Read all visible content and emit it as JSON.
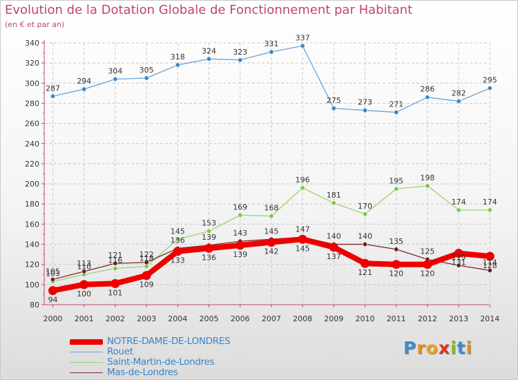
{
  "title": "Evolution de la Dotation Globale de Fonctionnement par Habitant",
  "subtitle": "(en € et par an)",
  "logo": {
    "text": "Proxiti",
    "letters": [
      "P",
      "r",
      "o",
      "x",
      "i",
      "t",
      "i"
    ],
    "colors": [
      "#3a8dd0",
      "#e58b1f",
      "#f0a020",
      "#e0361b",
      "#86b82c",
      "#3a8dd0",
      "#e58b1f"
    ]
  },
  "chart_data": {
    "type": "line",
    "title": "Evolution de la Dotation Globale de Fonctionnement par Habitant",
    "subtitle": "(en € et par an)",
    "x": [
      "2000",
      "2001",
      "2002",
      "2003",
      "2004",
      "2005",
      "2006",
      "2007",
      "2008",
      "2009",
      "2010",
      "2011",
      "2012",
      "2013",
      "2014"
    ],
    "ylim": [
      80,
      340
    ],
    "yticks": [
      80,
      100,
      120,
      140,
      160,
      180,
      200,
      220,
      240,
      260,
      280,
      300,
      320,
      340
    ],
    "grid": true,
    "legend_position": "bottom-left",
    "series": [
      {
        "name": "Rouet",
        "color": "#6aa3d6",
        "marker": "#3a87c8",
        "width": 1.3,
        "r": 3.2,
        "labels": "above",
        "values": [
          287,
          294,
          304,
          305,
          318,
          324,
          323,
          331,
          337,
          275,
          273,
          271,
          286,
          282,
          295
        ]
      },
      {
        "name": "Saint-Martin-de-Londres",
        "color": "#98d26c",
        "marker": "#7ec64a",
        "width": 1.3,
        "r": 3.2,
        "labels": "above",
        "values": [
          103,
          110,
          116,
          118,
          145,
          153,
          169,
          168,
          196,
          181,
          170,
          195,
          198,
          174,
          174
        ]
      },
      {
        "name": "Mas-de-Londres",
        "color": "#7a2a2a",
        "marker": "#6d1e1e",
        "width": 1.3,
        "r": 3.2,
        "labels": "above",
        "values": [
          105,
          113,
          121,
          122,
          136,
          139,
          143,
          145,
          147,
          140,
          140,
          135,
          125,
          119,
          114
        ]
      },
      {
        "name": "NOTRE-DAME-DE-LONDRES",
        "color": "#ee0000",
        "marker": "#ee0000",
        "width": 8,
        "r": 6.5,
        "labels": "below",
        "values": [
          94,
          100,
          101,
          109,
          133,
          136,
          139,
          142,
          145,
          137,
          121,
          120,
          120,
          131,
          128
        ]
      }
    ]
  },
  "legend": [
    {
      "label": "NOTRE-DAME-DE-LONDRES",
      "color": "#ee0000",
      "thickness": 8
    },
    {
      "label": "Rouet",
      "color": "#6aa3d6",
      "thickness": 1.5
    },
    {
      "label": "Saint-Martin-de-Londres",
      "color": "#98d26c",
      "thickness": 1.5
    },
    {
      "label": "Mas-de-Londres",
      "color": "#7a2a2a",
      "thickness": 1.5
    }
  ]
}
